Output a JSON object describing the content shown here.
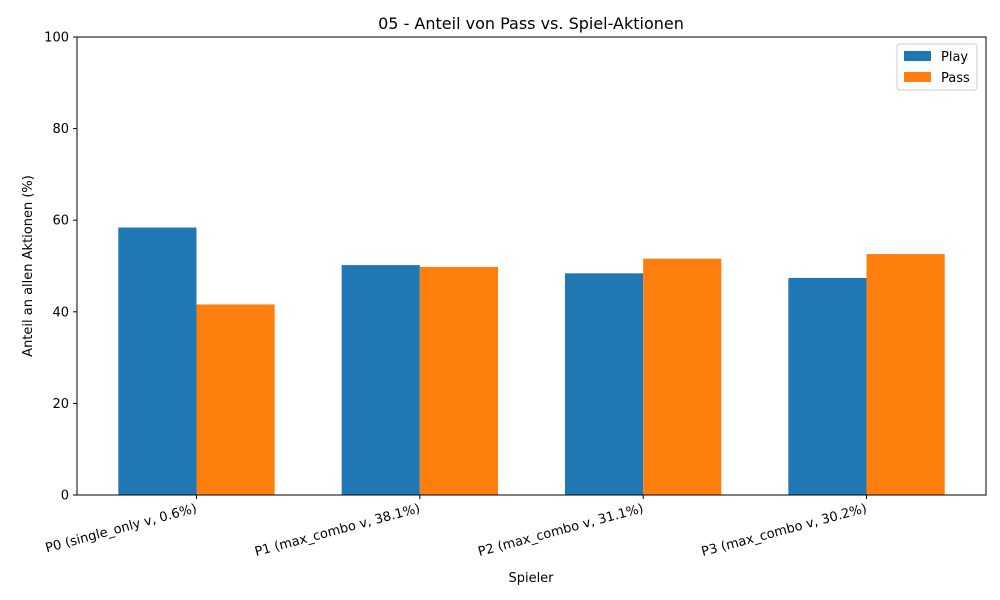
{
  "chart_data": {
    "type": "bar",
    "title": "05 - Anteil von Pass vs. Spiel-Aktionen",
    "xlabel": "Spieler",
    "ylabel": "Anteil an allen Aktionen (%)",
    "ylim": [
      0,
      100
    ],
    "yticks": [
      0,
      20,
      40,
      60,
      80,
      100
    ],
    "categories": [
      "P0 (single_only v, 0.6%)",
      "P1 (max_combo v, 38.1%)",
      "P2 (max_combo v, 31.1%)",
      "P3 (max_combo v, 30.2%)"
    ],
    "series": [
      {
        "name": "Play",
        "color": "#1f77b4",
        "values": [
          58.4,
          50.2,
          48.4,
          47.4
        ]
      },
      {
        "name": "Pass",
        "color": "#ff7f0e",
        "values": [
          41.6,
          49.8,
          51.6,
          52.6
        ]
      }
    ],
    "grid": false,
    "legend_position": "top-right"
  }
}
